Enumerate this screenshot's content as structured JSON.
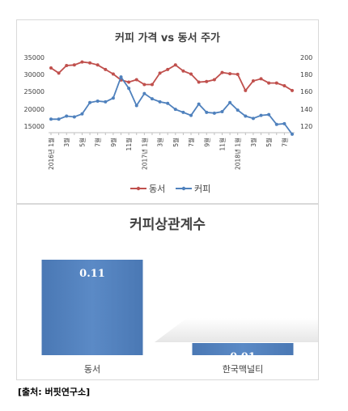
{
  "chart_data": [
    {
      "type": "line",
      "title": "커피 가격 vs 동서 주가",
      "y_left_ticks": [
        "35000",
        "30000",
        "25000",
        "20000",
        "15000",
        "10000"
      ],
      "y_left_range": [
        10000,
        35000
      ],
      "y_right_ticks": [
        "200",
        "180",
        "160",
        "140",
        "120",
        "100"
      ],
      "y_right_range": [
        100,
        200
      ],
      "x_labels": [
        "2016년 1월",
        "3월",
        "5월",
        "7월",
        "9월",
        "11월",
        "2017년 1월",
        "3월",
        "5월",
        "7월",
        "9월",
        "11월",
        "2018년 1월",
        "3월",
        "5월",
        "7월"
      ],
      "legend": [
        "동서",
        "커피"
      ],
      "legend_position": "bottom",
      "colors": {
        "동서": "#c0504d",
        "커피": "#4f81bd"
      },
      "series": [
        {
          "name": "동서",
          "axis": "left",
          "values": [
            31500,
            29800,
            32300,
            32500,
            33500,
            33200,
            32500,
            31000,
            29500,
            27500,
            26800,
            27600,
            26000,
            26000,
            29800,
            31000,
            32500,
            30500,
            29500,
            26800,
            27000,
            27600,
            30000,
            29600,
            29400,
            24000,
            27200,
            27900,
            26500,
            26500,
            25600,
            24000
          ]
        },
        {
          "name": "커피",
          "axis": "right",
          "values": [
            118,
            118,
            122,
            121,
            125,
            140,
            142,
            141,
            146,
            174,
            159,
            136,
            152,
            145,
            141,
            139,
            131,
            127,
            123,
            138,
            127,
            126,
            128,
            140,
            130,
            122,
            119,
            123,
            124,
            111,
            112,
            98
          ]
        }
      ]
    },
    {
      "type": "bar",
      "title": "커피상관계수",
      "categories": [
        "동서",
        "한국맥널티"
      ],
      "values": [
        0.11,
        0.01
      ],
      "data_labels": [
        "0.11",
        "0.01"
      ],
      "colors": {
        "bar": "#4f81bd"
      }
    }
  ],
  "source": "[출처: 버핏연구소]"
}
